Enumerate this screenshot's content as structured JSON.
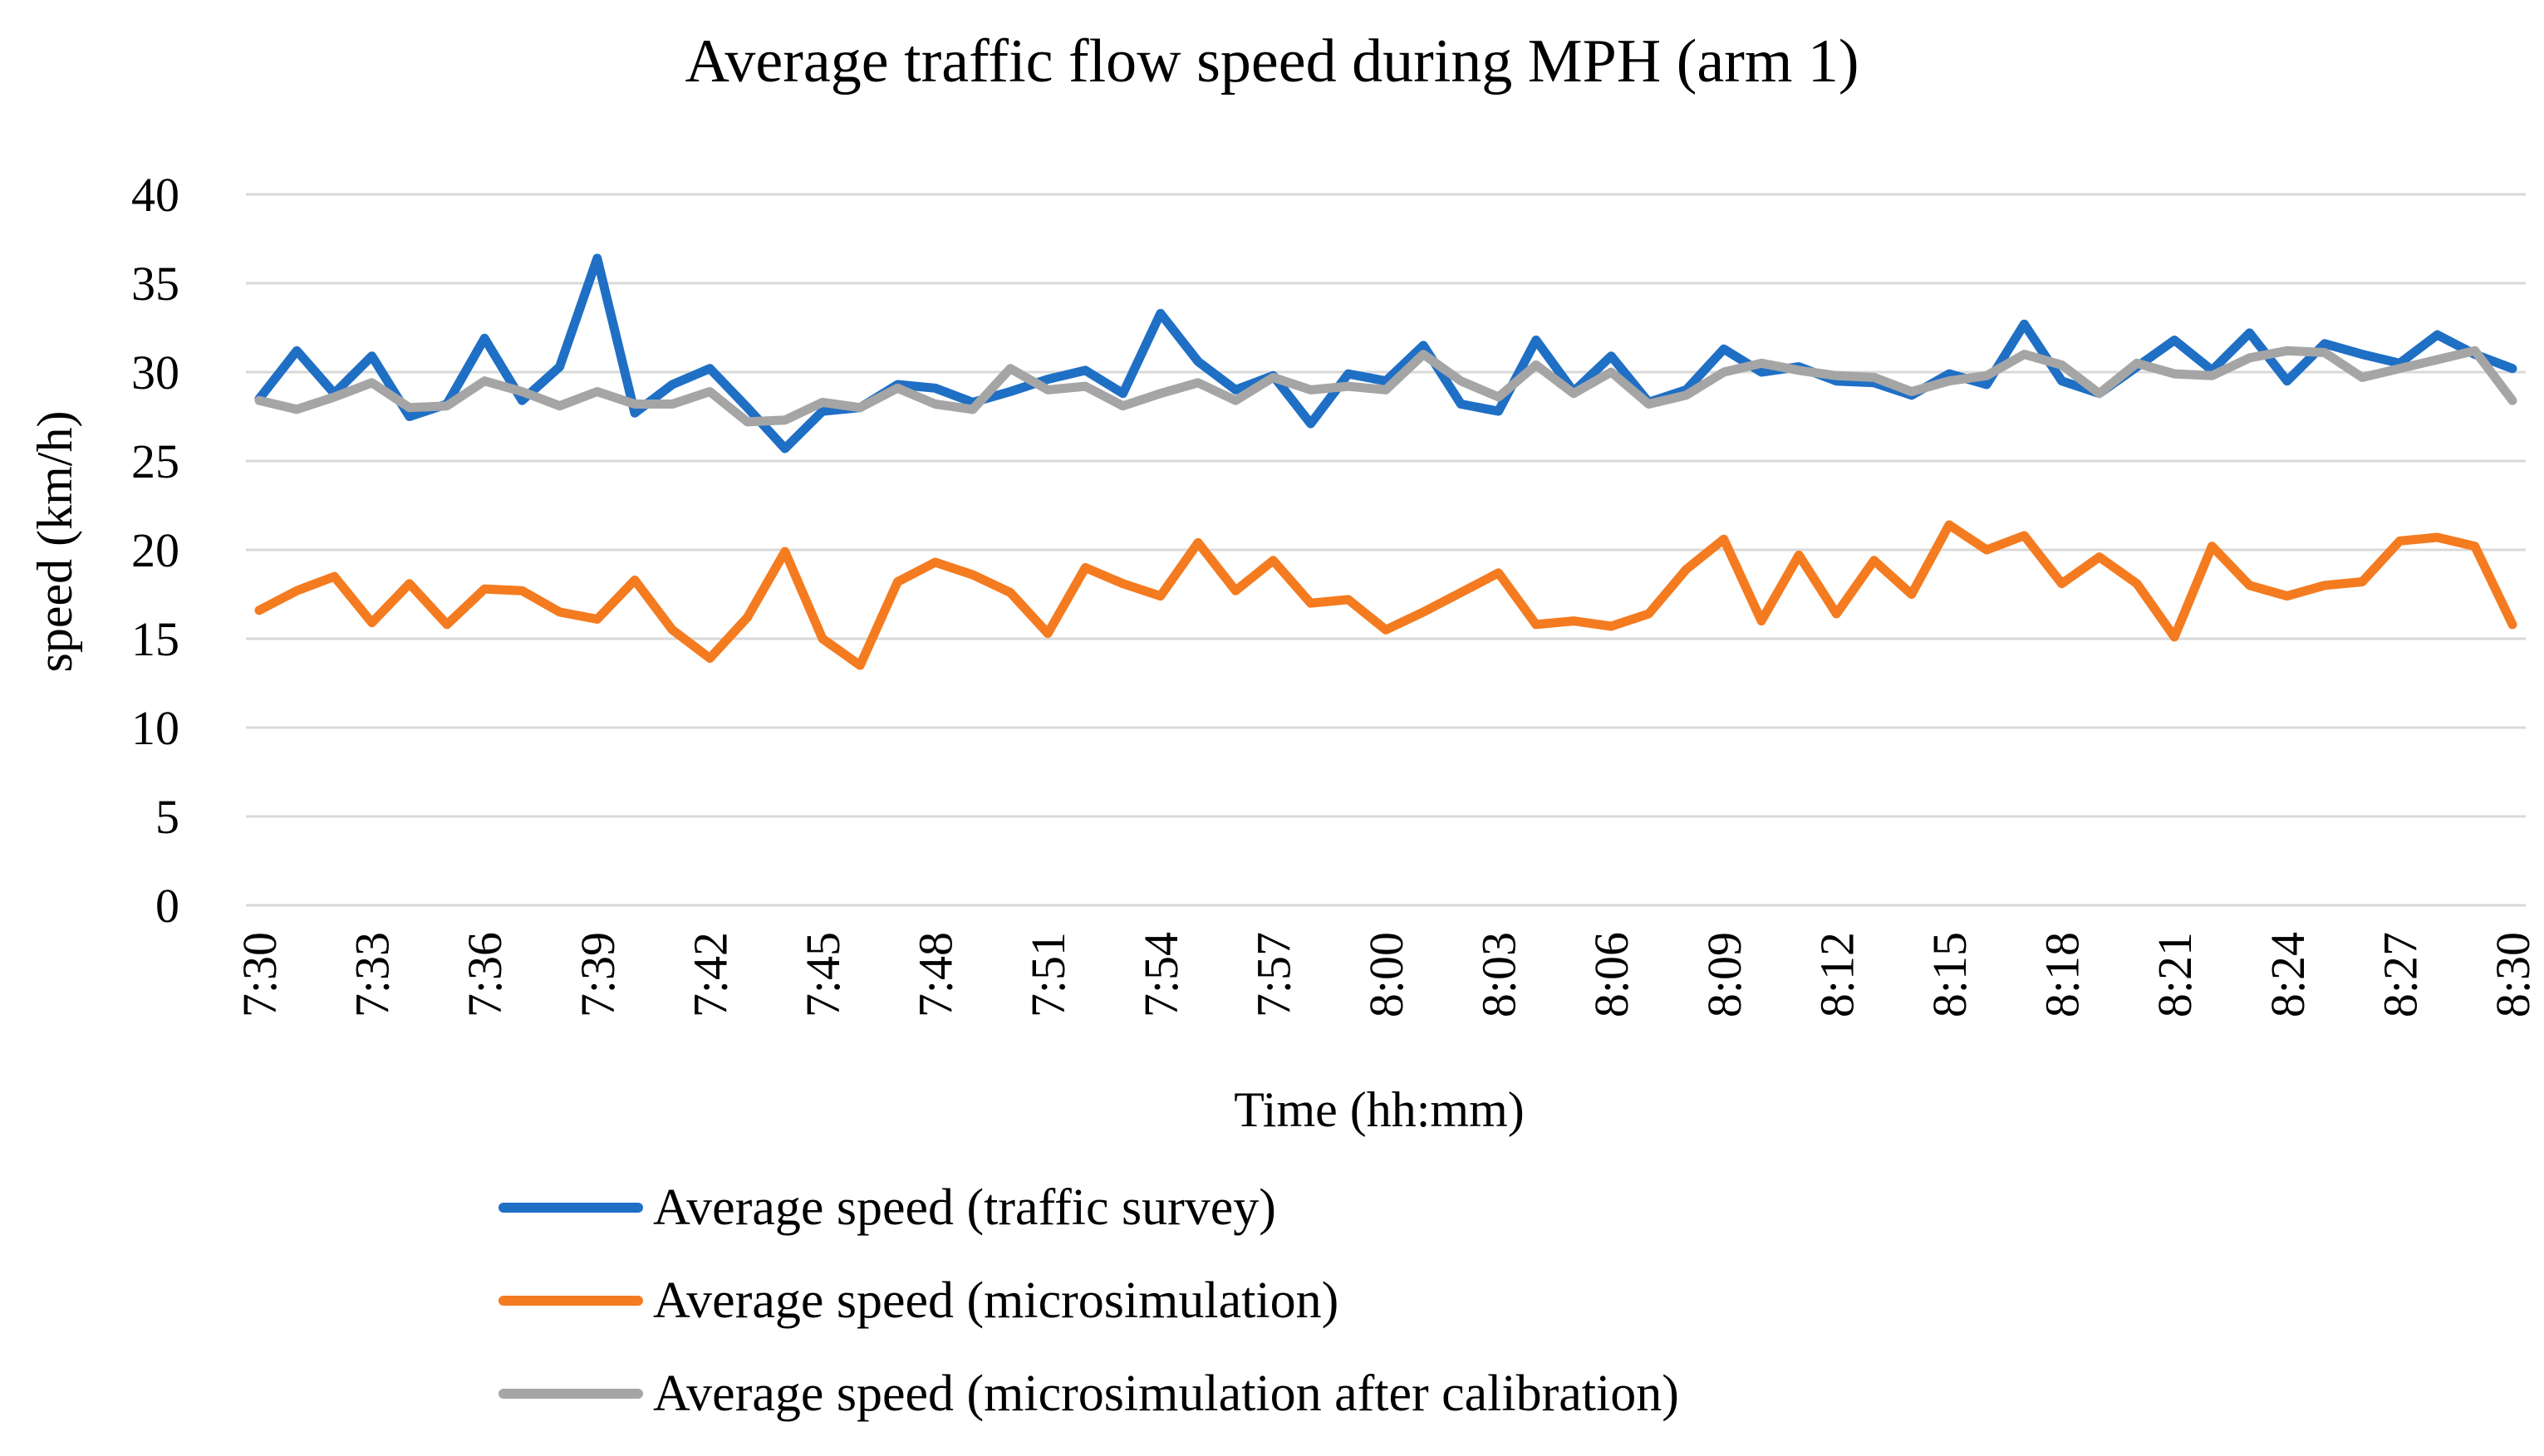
{
  "chart_data": {
    "type": "line",
    "title": "Average traffic flow speed during MPH (arm 1)",
    "xlabel": "Time (hh:mm)",
    "ylabel": "speed (km/h)",
    "ylim": [
      0,
      40
    ],
    "yticks": [
      0,
      5,
      10,
      15,
      20,
      25,
      30,
      35,
      40
    ],
    "grid": true,
    "legend_position": "bottom",
    "x": [
      "7:30",
      "7:31",
      "7:32",
      "7:33",
      "7:34",
      "7:35",
      "7:36",
      "7:37",
      "7:38",
      "7:39",
      "7:40",
      "7:41",
      "7:42",
      "7:43",
      "7:44",
      "7:45",
      "7:46",
      "7:47",
      "7:48",
      "7:49",
      "7:50",
      "7:51",
      "7:52",
      "7:53",
      "7:54",
      "7:55",
      "7:56",
      "7:57",
      "7:58",
      "7:59",
      "8:00",
      "8:01",
      "8:02",
      "8:03",
      "8:04",
      "8:05",
      "8:06",
      "8:07",
      "8:08",
      "8:09",
      "8:10",
      "8:11",
      "8:12",
      "8:13",
      "8:14",
      "8:15",
      "8:16",
      "8:17",
      "8:18",
      "8:19",
      "8:20",
      "8:21",
      "8:22",
      "8:23",
      "8:24",
      "8:25",
      "8:26",
      "8:27",
      "8:28",
      "8:29",
      "8:30"
    ],
    "x_tick_labels": [
      "7:30",
      "7:33",
      "7:36",
      "7:39",
      "7:42",
      "7:45",
      "7:48",
      "7:51",
      "7:54",
      "7:57",
      "8:00",
      "8:03",
      "8:06",
      "8:09",
      "8:12",
      "8:15",
      "8:18",
      "8:21",
      "8:24",
      "8:27",
      "8:30"
    ],
    "series": [
      {
        "name": "Average speed (traffic survey)",
        "color": "#1F6FC5",
        "values": [
          28.5,
          31.2,
          28.8,
          30.9,
          27.5,
          28.2,
          31.9,
          28.4,
          30.3,
          36.4,
          27.7,
          29.3,
          30.2,
          28.0,
          25.7,
          27.8,
          28.0,
          29.3,
          29.1,
          28.3,
          28.9,
          29.6,
          30.1,
          28.8,
          33.3,
          30.6,
          29.0,
          29.8,
          27.1,
          29.9,
          29.5,
          31.5,
          28.2,
          27.8,
          31.8,
          28.9,
          30.9,
          28.3,
          29.0,
          31.3,
          30.0,
          30.3,
          29.5,
          29.4,
          28.7,
          29.9,
          29.3,
          32.7,
          29.5,
          28.8,
          30.3,
          31.8,
          30.1,
          32.2,
          29.5,
          31.6,
          31.0,
          30.5,
          32.1,
          31.0,
          30.2
        ]
      },
      {
        "name": "Average speed (microsimulation)",
        "color": "#F47B20",
        "values": [
          16.6,
          17.7,
          18.5,
          15.9,
          18.1,
          15.8,
          17.8,
          17.7,
          16.5,
          16.1,
          18.3,
          15.5,
          13.9,
          16.2,
          19.9,
          15.0,
          13.5,
          18.2,
          19.3,
          18.6,
          17.6,
          15.3,
          19.0,
          18.1,
          17.4,
          20.4,
          17.7,
          19.4,
          17.0,
          17.2,
          15.5,
          16.5,
          17.6,
          18.7,
          15.8,
          16.0,
          15.7,
          16.4,
          18.9,
          20.6,
          16.0,
          19.7,
          16.4,
          19.4,
          17.5,
          21.4,
          20.0,
          20.8,
          18.1,
          19.6,
          18.1,
          15.1,
          20.2,
          18.0,
          17.4,
          18.0,
          18.2,
          20.5,
          20.7,
          20.2,
          15.8
        ]
      },
      {
        "name": "Average speed (microsimulation after calibration)",
        "color": "#A5A5A5",
        "values": [
          28.4,
          27.9,
          28.6,
          29.4,
          28.0,
          28.1,
          29.5,
          28.9,
          28.1,
          28.9,
          28.2,
          28.2,
          28.9,
          27.2,
          27.3,
          28.3,
          28.0,
          29.1,
          28.2,
          27.9,
          30.2,
          29.0,
          29.2,
          28.1,
          28.8,
          29.4,
          28.4,
          29.7,
          29.0,
          29.2,
          29.0,
          31.0,
          29.5,
          28.6,
          30.4,
          28.8,
          30.0,
          28.2,
          28.7,
          30.0,
          30.5,
          30.1,
          29.8,
          29.7,
          28.9,
          29.5,
          29.8,
          31.0,
          30.4,
          28.8,
          30.5,
          29.9,
          29.8,
          30.8,
          31.2,
          31.1,
          29.7,
          30.2,
          30.7,
          31.2,
          28.4
        ]
      }
    ]
  }
}
